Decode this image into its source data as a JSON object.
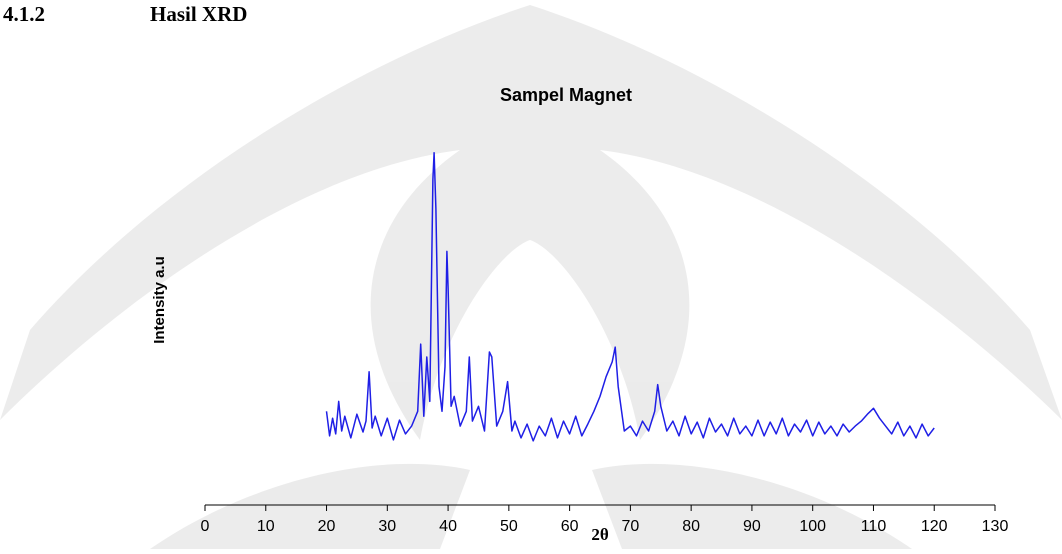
{
  "heading": {
    "number": "4.1.2",
    "title": "Hasil XRD"
  },
  "chart_data": {
    "type": "line",
    "title": "Sampel Magnet",
    "x_label": "2θ",
    "y_label": "Intensity a.u",
    "xlim": [
      0,
      130
    ],
    "xticks": [
      0,
      10,
      20,
      30,
      40,
      50,
      60,
      70,
      80,
      90,
      100,
      110,
      120,
      130
    ],
    "ylim": [
      0,
      380
    ],
    "grid": false,
    "series": [
      {
        "color": "#1f1fe6",
        "x": [
          20,
          20.5,
          21,
          21.5,
          22,
          22.5,
          23,
          24,
          25,
          26,
          26.5,
          27,
          27.5,
          28,
          29,
          30,
          31,
          32,
          33,
          34,
          35,
          35.5,
          36,
          36.5,
          37,
          37.5,
          37.7,
          38,
          38.5,
          39,
          39.5,
          39.8,
          40,
          40.5,
          41,
          42,
          43,
          43.5,
          44,
          45,
          46,
          46.8,
          47.2,
          48,
          49,
          49.8,
          50.5,
          51,
          52,
          53,
          54,
          55,
          56,
          57,
          58,
          59,
          60,
          61,
          62,
          63,
          64,
          65,
          66,
          67,
          67.5,
          68,
          69,
          70,
          71,
          72,
          73,
          74,
          74.5,
          75,
          76,
          77,
          78,
          79,
          80,
          81,
          82,
          83,
          84,
          85,
          86,
          87,
          88,
          89,
          90,
          91,
          92,
          93,
          94,
          95,
          96,
          97,
          98,
          99,
          100,
          101,
          102,
          103,
          104,
          105,
          106,
          107,
          108,
          109,
          110,
          111,
          112,
          113,
          114,
          115,
          116,
          117,
          118,
          119,
          120
        ],
        "values": [
          95,
          70,
          88,
          72,
          105,
          75,
          90,
          68,
          92,
          74,
          85,
          135,
          78,
          90,
          70,
          88,
          66,
          86,
          72,
          80,
          95,
          163,
          90,
          150,
          105,
          330,
          357,
          300,
          120,
          95,
          140,
          257,
          220,
          100,
          110,
          80,
          95,
          150,
          85,
          100,
          75,
          155,
          150,
          80,
          95,
          125,
          75,
          85,
          68,
          82,
          65,
          80,
          70,
          88,
          68,
          85,
          72,
          90,
          70,
          82,
          95,
          110,
          130,
          145,
          160,
          120,
          75,
          80,
          70,
          85,
          75,
          95,
          122,
          100,
          75,
          85,
          70,
          90,
          72,
          84,
          68,
          88,
          74,
          82,
          70,
          88,
          72,
          80,
          70,
          86,
          70,
          84,
          72,
          88,
          70,
          82,
          74,
          86,
          70,
          84,
          72,
          80,
          70,
          82,
          74,
          80,
          85,
          92,
          98,
          88,
          80,
          72,
          84,
          70,
          80,
          68,
          82,
          70,
          78
        ]
      }
    ]
  }
}
